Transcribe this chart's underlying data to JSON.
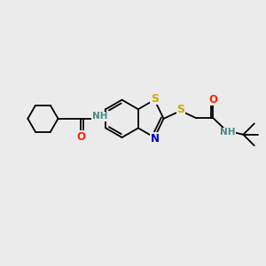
{
  "bg_color": "#ebebeb",
  "atom_colors": {
    "C": "#000000",
    "N": "#0000cc",
    "O": "#ff2200",
    "S": "#ccaa00",
    "H": "#4a8888"
  },
  "bond_color": "#000000",
  "font_size": 8.0,
  "figure_size": [
    3.0,
    3.0
  ],
  "dpi": 100
}
